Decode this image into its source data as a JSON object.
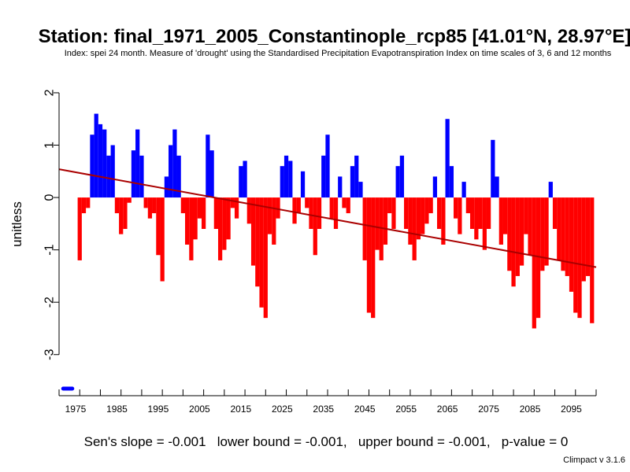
{
  "chart_data": {
    "type": "bar",
    "title": "Station: final_1971_2005_Constantinople_rcp85 [41.01°N, 28.97°E]",
    "subtitle": "Index: spei 24 month. Measure of 'drought' using the Standardised Precipitation Evapotranspiration Index on time scales of 3, 6 and 12 months",
    "ylabel": "unitless",
    "xlabel": "",
    "xlim": [
      1971,
      2101
    ],
    "ylim": [
      -3.65,
      2.45
    ],
    "x_ticks": [
      1975,
      1985,
      1995,
      2005,
      2015,
      2025,
      2035,
      2045,
      2055,
      2065,
      2075,
      2085,
      2095
    ],
    "y_ticks": [
      -3,
      -2,
      -1,
      0,
      1,
      2
    ],
    "colors": {
      "positive": "#0000ff",
      "negative": "#ff0000",
      "trend": "#aa0000"
    },
    "missing_marker": {
      "years": [
        1972.0,
        1974.2
      ],
      "value": -3.65,
      "color": "#0000ff"
    },
    "x": [
      1976,
      1977,
      1978,
      1979,
      1980,
      1981,
      1982,
      1983,
      1984,
      1985,
      1986,
      1987,
      1988,
      1989,
      1990,
      1991,
      1992,
      1993,
      1994,
      1995,
      1996,
      1997,
      1998,
      1999,
      2000,
      2001,
      2002,
      2003,
      2004,
      2005,
      2006,
      2007,
      2008,
      2009,
      2010,
      2011,
      2012,
      2013,
      2014,
      2015,
      2016,
      2017,
      2018,
      2019,
      2020,
      2021,
      2022,
      2023,
      2024,
      2025,
      2026,
      2027,
      2028,
      2029,
      2030,
      2031,
      2032,
      2033,
      2034,
      2035,
      2036,
      2037,
      2038,
      2039,
      2040,
      2041,
      2042,
      2043,
      2044,
      2045,
      2046,
      2047,
      2048,
      2049,
      2050,
      2051,
      2052,
      2053,
      2054,
      2055,
      2056,
      2057,
      2058,
      2059,
      2060,
      2061,
      2062,
      2063,
      2064,
      2065,
      2066,
      2067,
      2068,
      2069,
      2070,
      2071,
      2072,
      2073,
      2074,
      2075,
      2076,
      2077,
      2078,
      2079,
      2080,
      2081,
      2082,
      2083,
      2084,
      2085,
      2086,
      2087,
      2088,
      2089,
      2090,
      2091,
      2092,
      2093,
      2094,
      2095,
      2096,
      2097,
      2098,
      2099,
      2100
    ],
    "values": [
      -1.2,
      -0.3,
      -0.2,
      1.2,
      1.6,
      1.4,
      1.3,
      0.8,
      1.0,
      -0.3,
      -0.7,
      -0.6,
      -0.1,
      0.9,
      1.3,
      0.8,
      -0.2,
      -0.4,
      -0.3,
      -1.1,
      -1.6,
      0.4,
      1.0,
      1.3,
      0.8,
      -0.3,
      -0.9,
      -1.2,
      -0.8,
      -0.4,
      -0.6,
      1.2,
      0.9,
      -0.6,
      -1.2,
      -1.0,
      -0.8,
      -0.2,
      -0.4,
      0.6,
      0.7,
      -0.5,
      -1.3,
      -1.7,
      -2.1,
      -2.3,
      -0.7,
      -0.9,
      -0.4,
      0.6,
      0.8,
      0.7,
      -0.5,
      -0.3,
      0.5,
      -0.2,
      -0.6,
      -1.1,
      -0.6,
      0.8,
      1.2,
      -0.4,
      -0.6,
      0.4,
      -0.2,
      -0.3,
      0.6,
      0.8,
      0.3,
      -1.2,
      -2.2,
      -2.3,
      -1.0,
      -1.2,
      -0.9,
      -0.3,
      -0.6,
      0.6,
      0.8,
      -0.6,
      -0.9,
      -1.2,
      -0.8,
      -0.7,
      -0.5,
      -0.3,
      0.4,
      -0.6,
      -0.9,
      1.5,
      0.6,
      -0.4,
      -0.7,
      0.3,
      -0.3,
      -0.6,
      -0.8,
      -0.6,
      -1.0,
      -0.6,
      1.1,
      0.4,
      -0.9,
      -0.7,
      -1.4,
      -1.7,
      -1.5,
      -1.3,
      -0.7,
      -1.1,
      -2.5,
      -2.3,
      -1.4,
      -1.3,
      0.3,
      -0.6,
      -1.2,
      -1.4,
      -1.5,
      -1.8,
      -2.2,
      -2.3,
      -1.6,
      -1.5,
      -2.4
    ],
    "trend": {
      "x": [
        1971,
        2101
      ],
      "y": [
        0.54,
        -1.33
      ]
    },
    "stats_text": "Sen's slope = -0.001   lower bound = -0.001,   upper bound = -0.001,   p-value = 0",
    "credit": "Climpact v 3.1.6"
  }
}
